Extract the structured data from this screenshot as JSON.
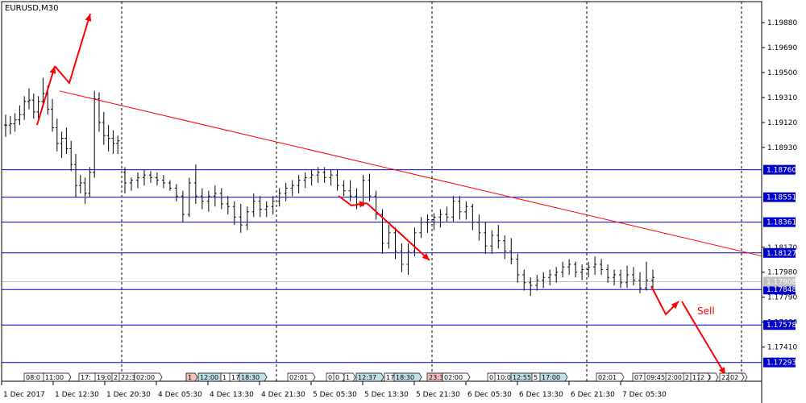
{
  "chart_data": {
    "type": "candlestick",
    "title": "EURUSD,M30",
    "symbol": "EURUSD",
    "timeframe": "M30",
    "ylim": [
      1.1715,
      1.2004
    ],
    "y_ticks": [
      "1.19880",
      "1.19690",
      "1.19500",
      "1.19310",
      "1.19120",
      "1.18930",
      "1.18170",
      "1.17980",
      "1.17790",
      "1.17600",
      "1.17410"
    ],
    "x_ticks": [
      "1 Dec 2017",
      "1 Dec 12:30",
      "1 Dec 20:30",
      "4 Dec 05:30",
      "4 Dec 13:30",
      "4 Dec 21:30",
      "5 Dec 05:30",
      "5 Dec 13:30",
      "5 Dec 21:30",
      "6 Dec 05:30",
      "6 Dec 13:30",
      "6 Dec 21:30",
      "7 Dec 05:30"
    ],
    "session_dividers": [
      "1 Dec 2017",
      "1 Dec 20:30",
      "4 Dec 21:30",
      "5 Dec 21:30",
      "6 Dec 21:30",
      "7 Dec 09:00"
    ],
    "levels": [
      {
        "value": 1.1876,
        "label": "1.18760"
      },
      {
        "value": 1.18551,
        "label": "1.18551"
      },
      {
        "value": 1.18361,
        "label": "1.18361"
      },
      {
        "value": 1.18127,
        "label": "1.18127"
      },
      {
        "value": 1.17848,
        "label": "1.17848"
      },
      {
        "value": 1.17578,
        "label": "1.17578"
      },
      {
        "value": 1.17293,
        "label": "1.17293"
      }
    ],
    "current_price": "1.17908",
    "trendline": {
      "start": [
        11,
        1.1936
      ],
      "end": [
        150,
        1.1782
      ]
    },
    "candles": [
      [
        1.191,
        1.1918,
        1.1901,
        1.191
      ],
      [
        1.191,
        1.1917,
        1.1903,
        1.1911
      ],
      [
        1.1911,
        1.1919,
        1.1905,
        1.1914
      ],
      [
        1.1914,
        1.1925,
        1.191,
        1.1918
      ],
      [
        1.1918,
        1.1932,
        1.1914,
        1.1928
      ],
      [
        1.1928,
        1.1938,
        1.1922,
        1.1929
      ],
      [
        1.1929,
        1.1934,
        1.1915,
        1.192
      ],
      [
        1.192,
        1.1932,
        1.1915,
        1.1928
      ],
      [
        1.1928,
        1.1946,
        1.1925,
        1.1934
      ],
      [
        1.1934,
        1.194,
        1.1918,
        1.1922
      ],
      [
        1.1922,
        1.193,
        1.1905,
        1.1908
      ],
      [
        1.1908,
        1.1915,
        1.189,
        1.1896
      ],
      [
        1.1896,
        1.1905,
        1.1885,
        1.19
      ],
      [
        1.19,
        1.1908,
        1.1888,
        1.1892
      ],
      [
        1.1892,
        1.1898,
        1.1875,
        1.188
      ],
      [
        1.188,
        1.1888,
        1.1855,
        1.1864
      ],
      [
        1.1864,
        1.1872,
        1.1858,
        1.1866
      ],
      [
        1.1866,
        1.187,
        1.185,
        1.1858
      ],
      [
        1.1858,
        1.1878,
        1.1855,
        1.1874
      ],
      [
        1.1874,
        1.1936,
        1.187,
        1.193
      ],
      [
        1.193,
        1.1935,
        1.1905,
        1.1912
      ],
      [
        1.1912,
        1.192,
        1.1895,
        1.1902
      ],
      [
        1.1902,
        1.191,
        1.189,
        1.19
      ],
      [
        1.19,
        1.1906,
        1.1888,
        1.1896
      ],
      [
        1.1896,
        1.1902,
        1.1888,
        1.1898
      ],
      [
        1.1874,
        1.1878,
        1.1858,
        1.1866
      ],
      [
        1.1866,
        1.187,
        1.186,
        1.1868
      ],
      [
        1.1868,
        1.1874,
        1.1862,
        1.187
      ],
      [
        1.187,
        1.1876,
        1.1864,
        1.1872
      ],
      [
        1.1872,
        1.1875,
        1.1866,
        1.187
      ],
      [
        1.187,
        1.1874,
        1.1864,
        1.1868
      ],
      [
        1.1868,
        1.1872,
        1.1862,
        1.1866
      ],
      [
        1.1866,
        1.1868,
        1.186,
        1.1862
      ],
      [
        1.1862,
        1.1865,
        1.1852,
        1.1856
      ],
      [
        1.1856,
        1.186,
        1.1836,
        1.1842
      ],
      [
        1.1842,
        1.187,
        1.184,
        1.1866
      ],
      [
        1.1866,
        1.188,
        1.185,
        1.1856
      ],
      [
        1.1856,
        1.1862,
        1.1846,
        1.1852
      ],
      [
        1.1852,
        1.186,
        1.1844,
        1.1856
      ],
      [
        1.1856,
        1.1864,
        1.1848,
        1.1858
      ],
      [
        1.1858,
        1.1862,
        1.1846,
        1.185
      ],
      [
        1.185,
        1.1856,
        1.1842,
        1.1848
      ],
      [
        1.1848,
        1.1852,
        1.1834,
        1.184
      ],
      [
        1.184,
        1.185,
        1.1828,
        1.1834
      ],
      [
        1.1834,
        1.1848,
        1.183,
        1.1844
      ],
      [
        1.1844,
        1.1858,
        1.184,
        1.1852
      ],
      [
        1.1852,
        1.1856,
        1.184,
        1.1846
      ],
      [
        1.1846,
        1.1852,
        1.184,
        1.1848
      ],
      [
        1.1848,
        1.1856,
        1.1842,
        1.1852
      ],
      [
        1.1852,
        1.1862,
        1.1848,
        1.1858
      ],
      [
        1.1858,
        1.1866,
        1.1852,
        1.1862
      ],
      [
        1.1862,
        1.1868,
        1.1856,
        1.1864
      ],
      [
        1.1864,
        1.1872,
        1.1858,
        1.1868
      ],
      [
        1.1868,
        1.1874,
        1.1862,
        1.187
      ],
      [
        1.187,
        1.1876,
        1.1864,
        1.1872
      ],
      [
        1.1872,
        1.1878,
        1.1866,
        1.1874
      ],
      [
        1.1874,
        1.1878,
        1.1866,
        1.187
      ],
      [
        1.187,
        1.1876,
        1.1864,
        1.1872
      ],
      [
        1.1872,
        1.1876,
        1.186,
        1.1864
      ],
      [
        1.1864,
        1.1868,
        1.1856,
        1.186
      ],
      [
        1.186,
        1.1868,
        1.1852,
        1.1856
      ],
      [
        1.1856,
        1.1862,
        1.1846,
        1.185
      ],
      [
        1.185,
        1.1872,
        1.1848,
        1.1868
      ],
      [
        1.1868,
        1.1873,
        1.1852,
        1.1856
      ],
      [
        1.1856,
        1.186,
        1.1838,
        1.1842
      ],
      [
        1.1842,
        1.1846,
        1.1812,
        1.182
      ],
      [
        1.182,
        1.1834,
        1.1816,
        1.1828
      ],
      [
        1.1828,
        1.1832,
        1.1808,
        1.1814
      ],
      [
        1.1814,
        1.182,
        1.1798,
        1.1804
      ],
      [
        1.1804,
        1.182,
        1.1796,
        1.1814
      ],
      [
        1.1814,
        1.1832,
        1.181,
        1.1828
      ],
      [
        1.1828,
        1.184,
        1.1824,
        1.1836
      ],
      [
        1.1836,
        1.1842,
        1.1828,
        1.1838
      ],
      [
        1.1838,
        1.1843,
        1.183,
        1.184
      ],
      [
        1.184,
        1.1846,
        1.1832,
        1.1842
      ],
      [
        1.1842,
        1.1848,
        1.1836,
        1.184
      ],
      [
        1.184,
        1.1856,
        1.1836,
        1.1852
      ],
      [
        1.1852,
        1.1856,
        1.1838,
        1.1844
      ],
      [
        1.1844,
        1.1852,
        1.1838,
        1.1848
      ],
      [
        1.1848,
        1.185,
        1.183,
        1.1836
      ],
      [
        1.1836,
        1.1842,
        1.1822,
        1.1828
      ],
      [
        1.1828,
        1.1836,
        1.1812,
        1.1818
      ],
      [
        1.1818,
        1.183,
        1.1812,
        1.1826
      ],
      [
        1.1826,
        1.1834,
        1.1816,
        1.1822
      ],
      [
        1.1822,
        1.1826,
        1.1808,
        1.1814
      ],
      [
        1.1814,
        1.1824,
        1.1804,
        1.1808
      ],
      [
        1.1808,
        1.1812,
        1.179,
        1.1796
      ],
      [
        1.1796,
        1.18,
        1.1784,
        1.179
      ],
      [
        1.179,
        1.1794,
        1.178,
        1.1788
      ],
      [
        1.1788,
        1.1796,
        1.1784,
        1.1792
      ],
      [
        1.1792,
        1.1798,
        1.1786,
        1.1794
      ],
      [
        1.1794,
        1.18,
        1.1788,
        1.1796
      ],
      [
        1.1796,
        1.1802,
        1.179,
        1.1798
      ],
      [
        1.1798,
        1.1806,
        1.1794,
        1.1802
      ],
      [
        1.1802,
        1.1808,
        1.1796,
        1.1804
      ],
      [
        1.1804,
        1.1806,
        1.1794,
        1.1798
      ],
      [
        1.1798,
        1.1804,
        1.1792,
        1.18
      ],
      [
        1.18,
        1.1806,
        1.1794,
        1.1802
      ],
      [
        1.1802,
        1.181,
        1.1796,
        1.1804
      ],
      [
        1.1804,
        1.1808,
        1.1796,
        1.18
      ],
      [
        1.18,
        1.1804,
        1.179,
        1.1794
      ],
      [
        1.1794,
        1.18,
        1.1788,
        1.1796
      ],
      [
        1.1796,
        1.18,
        1.1786,
        1.179
      ],
      [
        1.179,
        1.1803,
        1.1786,
        1.1796
      ],
      [
        1.1796,
        1.1802,
        1.1788,
        1.1792
      ],
      [
        1.1792,
        1.1798,
        1.1782,
        1.1786
      ],
      [
        1.1786,
        1.1806,
        1.1784,
        1.1792
      ],
      [
        1.1792,
        1.18,
        1.1786,
        1.1794
      ]
    ],
    "session_markers": [
      "08:0",
      "11:00",
      "17:",
      "19:0",
      "2",
      "22:3",
      "02:00",
      "1",
      "12:00",
      "1",
      "17",
      "18:30",
      "02:01",
      "0",
      "0",
      "1",
      "12:37",
      "17",
      "18:30",
      "23:3",
      "02:00",
      "0",
      "10:0",
      "12:55",
      "5",
      "17:00",
      "02:01",
      "07",
      "09:45",
      "2:00",
      "2",
      "17:30",
      "2",
      "22:00",
      "02"
    ],
    "annotation": "Sell"
  }
}
